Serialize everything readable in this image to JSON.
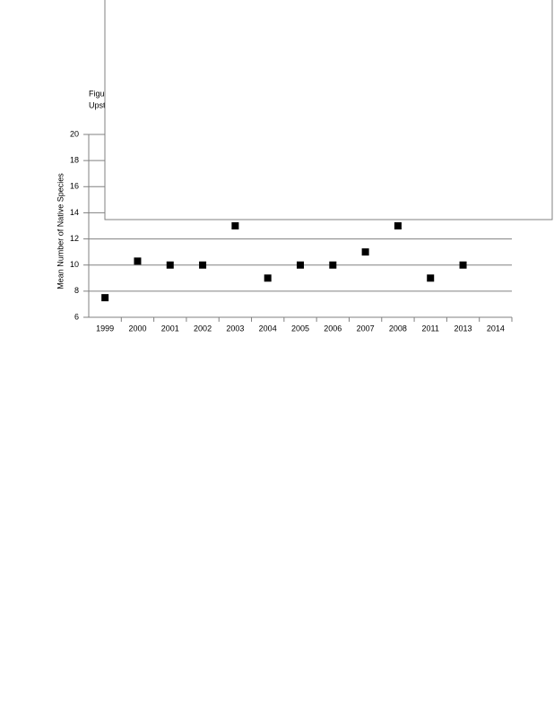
{
  "chart_data": {
    "type": "scatter",
    "title_lines": [
      "Figu",
      "Upst"
    ],
    "y_label": "Mean Number of Native Species",
    "categories": [
      "1999",
      "2000",
      "2001",
      "2002",
      "2003",
      "2004",
      "2005",
      "2006",
      "2007",
      "2008",
      "2011",
      "2013",
      "2014"
    ],
    "values": [
      7.5,
      10.3,
      10,
      10,
      13,
      9,
      10,
      10,
      11,
      13,
      9,
      10,
      null
    ],
    "color": "#000000",
    "ylim": [
      6,
      20
    ],
    "yticks": [
      6,
      8,
      10,
      12,
      14,
      16,
      18,
      20
    ],
    "grid": true
  }
}
